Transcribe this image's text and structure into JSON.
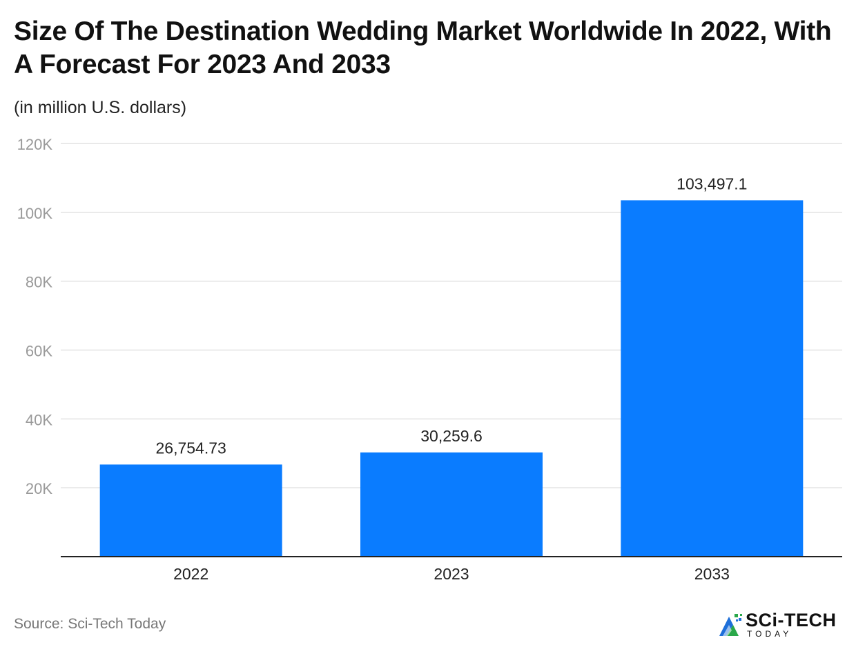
{
  "chart_data": {
    "type": "bar",
    "title": "Size Of The Destination Wedding Market Worldwide In 2022, With A Forecast For 2023 And 2033",
    "subtitle": "(in million U.S. dollars)",
    "categories": [
      "2022",
      "2023",
      "2033"
    ],
    "values": [
      26754.73,
      30259.6,
      103497.1
    ],
    "data_labels": [
      "26,754.73",
      "30,259.6",
      "103,497.1"
    ],
    "ylim": [
      0,
      120000
    ],
    "yticks": [
      20000,
      40000,
      60000,
      80000,
      100000,
      120000
    ],
    "ytick_labels": [
      "20K",
      "40K",
      "60K",
      "80K",
      "100K",
      "120K"
    ],
    "grid": true,
    "bar_color": "#0a7cff",
    "legend": "none"
  },
  "footer": {
    "source": "Source: Sci-Tech Today"
  },
  "logo": {
    "name": "SCi-TECH",
    "tagline": "TODAY"
  }
}
